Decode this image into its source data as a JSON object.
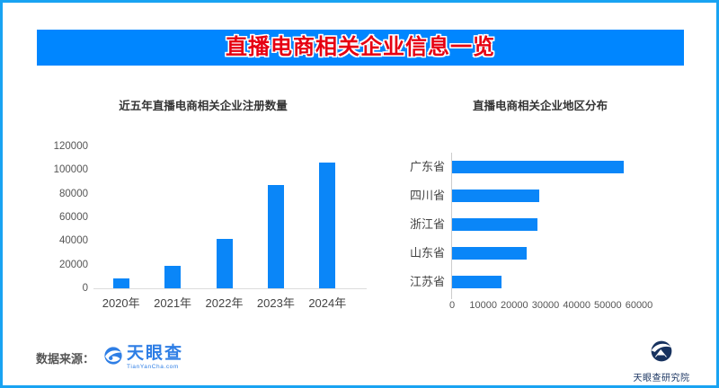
{
  "banner": {
    "title": "直播电商相关企业信息一览"
  },
  "chart_data": [
    {
      "type": "bar",
      "orientation": "vertical",
      "title": "近五年直播电商相关企业注册数量",
      "categories": [
        "2020年",
        "2021年",
        "2022年",
        "2023年",
        "2024年"
      ],
      "values": [
        8000,
        19000,
        42000,
        87000,
        106000
      ],
      "xlabel": "",
      "ylabel": "",
      "ylim": [
        0,
        120000
      ],
      "yticks": [
        0,
        20000,
        40000,
        60000,
        80000,
        100000,
        120000
      ],
      "grid": false,
      "legend": false,
      "bar_color": "#0a86f8"
    },
    {
      "type": "bar",
      "orientation": "horizontal",
      "title": "直播电商相关企业地区分布",
      "categories": [
        "广东省",
        "四川省",
        "浙江省",
        "山东省",
        "江苏省"
      ],
      "values": [
        55000,
        28000,
        27500,
        24000,
        16000
      ],
      "xlabel": "",
      "ylabel": "",
      "xlim": [
        0,
        60000
      ],
      "xticks": [
        0,
        10000,
        20000,
        30000,
        40000,
        50000,
        60000
      ],
      "grid": false,
      "legend": false,
      "bar_color": "#0a86f8"
    }
  ],
  "footer": {
    "source_label": "数据来源：",
    "source_logo": {
      "text": "天眼查",
      "subtext": "TianYanCha.com"
    },
    "org_logo": {
      "text": "天眼查研究院"
    }
  },
  "colors": {
    "frame_border": "#18a3f2",
    "banner_bg": "#0086ff",
    "banner_title": "#e60012",
    "bar": "#0a86f8",
    "axis_line": "#cccccc",
    "logo_blue": "#2e7ee5",
    "logo_navy": "#17325f"
  }
}
